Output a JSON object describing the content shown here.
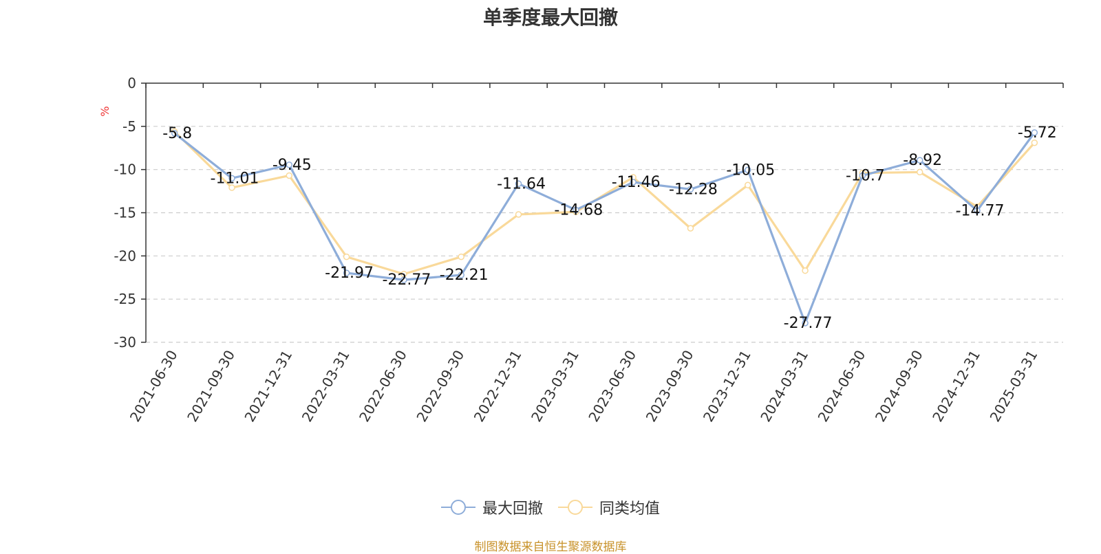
{
  "chart_data": {
    "type": "line",
    "title": "单季度最大回撤",
    "ylabel": "%",
    "xlabel": "",
    "ylim": [
      -30,
      0
    ],
    "yticks": [
      0,
      -5,
      -10,
      -15,
      -20,
      -25,
      -30
    ],
    "categories": [
      "2021-06-30",
      "2021-09-30",
      "2021-12-31",
      "2022-03-31",
      "2022-06-30",
      "2022-09-30",
      "2022-12-31",
      "2023-03-31",
      "2023-06-30",
      "2023-09-30",
      "2023-12-31",
      "2024-03-31",
      "2024-06-30",
      "2024-09-30",
      "2024-12-31",
      "2025-03-31"
    ],
    "series": [
      {
        "name": "最大回撤",
        "color": "#8eadd9",
        "values": [
          -5.8,
          -11.01,
          -9.45,
          -21.97,
          -22.77,
          -22.21,
          -11.64,
          -14.68,
          -11.46,
          -12.28,
          -10.05,
          -27.77,
          -10.7,
          -8.92,
          -14.77,
          -5.72
        ],
        "labels": [
          "-5.8",
          "-11.01",
          "-9.45",
          "-21.97",
          "-22.77",
          "-22.21",
          "-11.64",
          "-14.68",
          "-11.46",
          "-12.28",
          "-10.05",
          "-27.77",
          "-10.7",
          "-8.92",
          "-14.77",
          "-5.72"
        ]
      },
      {
        "name": "同类均值",
        "color": "#f9d99a",
        "values": [
          -5.6,
          -12.1,
          -10.7,
          -20.1,
          -22.1,
          -20.1,
          -15.2,
          -14.9,
          -10.9,
          -16.8,
          -11.8,
          -21.7,
          -10.4,
          -10.3,
          -14.3,
          -6.9
        ]
      }
    ],
    "grid": true,
    "legend_position": "bottom-center"
  },
  "footer": {
    "source": "制图数据来自恒生聚源数据库"
  }
}
